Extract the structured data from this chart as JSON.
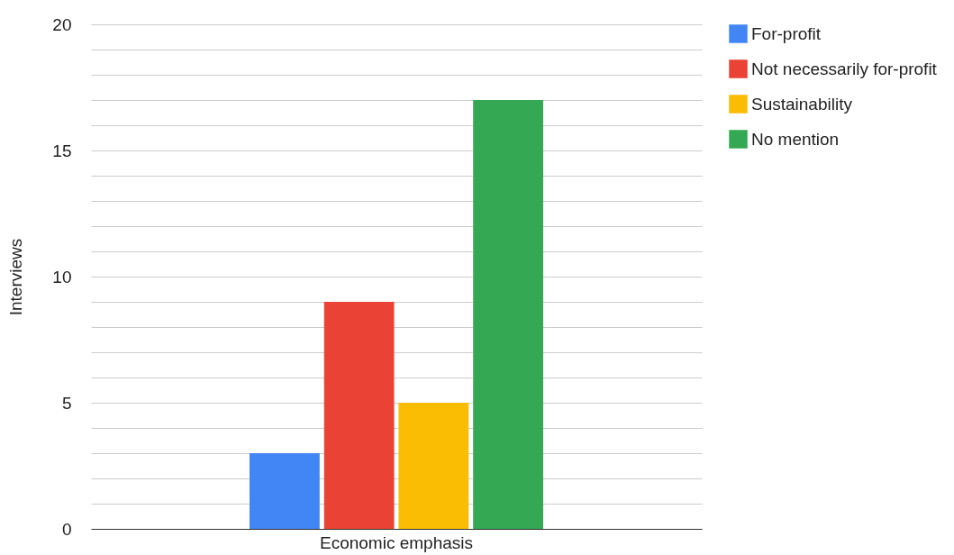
{
  "chart_data": {
    "type": "bar",
    "ylabel": "Interviews",
    "categories": [
      "Economic emphasis"
    ],
    "series": [
      {
        "name": "For-profit",
        "color": "#4285f4",
        "values": [
          3
        ]
      },
      {
        "name": "Not necessarily for-profit",
        "color": "#ea4335",
        "values": [
          9
        ]
      },
      {
        "name": "Sustainability",
        "color": "#fbbc04",
        "values": [
          5
        ]
      },
      {
        "name": "No mention",
        "color": "#34a853",
        "values": [
          17
        ]
      }
    ],
    "ylim": [
      0,
      20
    ],
    "yticks": [
      0,
      {
        "value": 1,
        "label": null
      },
      {
        "value": 2,
        "label": null
      },
      {
        "value": 3,
        "label": null
      },
      {
        "value": 4,
        "label": null
      },
      5,
      {
        "value": 6,
        "label": null
      },
      {
        "value": 7,
        "label": null
      },
      {
        "value": 8,
        "label": null
      },
      {
        "value": 9,
        "label": null
      },
      10,
      {
        "value": 11,
        "label": null
      },
      {
        "value": 12,
        "label": null
      },
      {
        "value": 13,
        "label": null
      },
      {
        "value": 14,
        "label": null
      },
      15,
      {
        "value": 16,
        "label": null
      },
      {
        "value": 17,
        "label": null
      },
      {
        "value": 18,
        "label": null
      },
      {
        "value": 19,
        "label": null
      },
      20
    ],
    "grid": "y",
    "legend": "top right"
  }
}
